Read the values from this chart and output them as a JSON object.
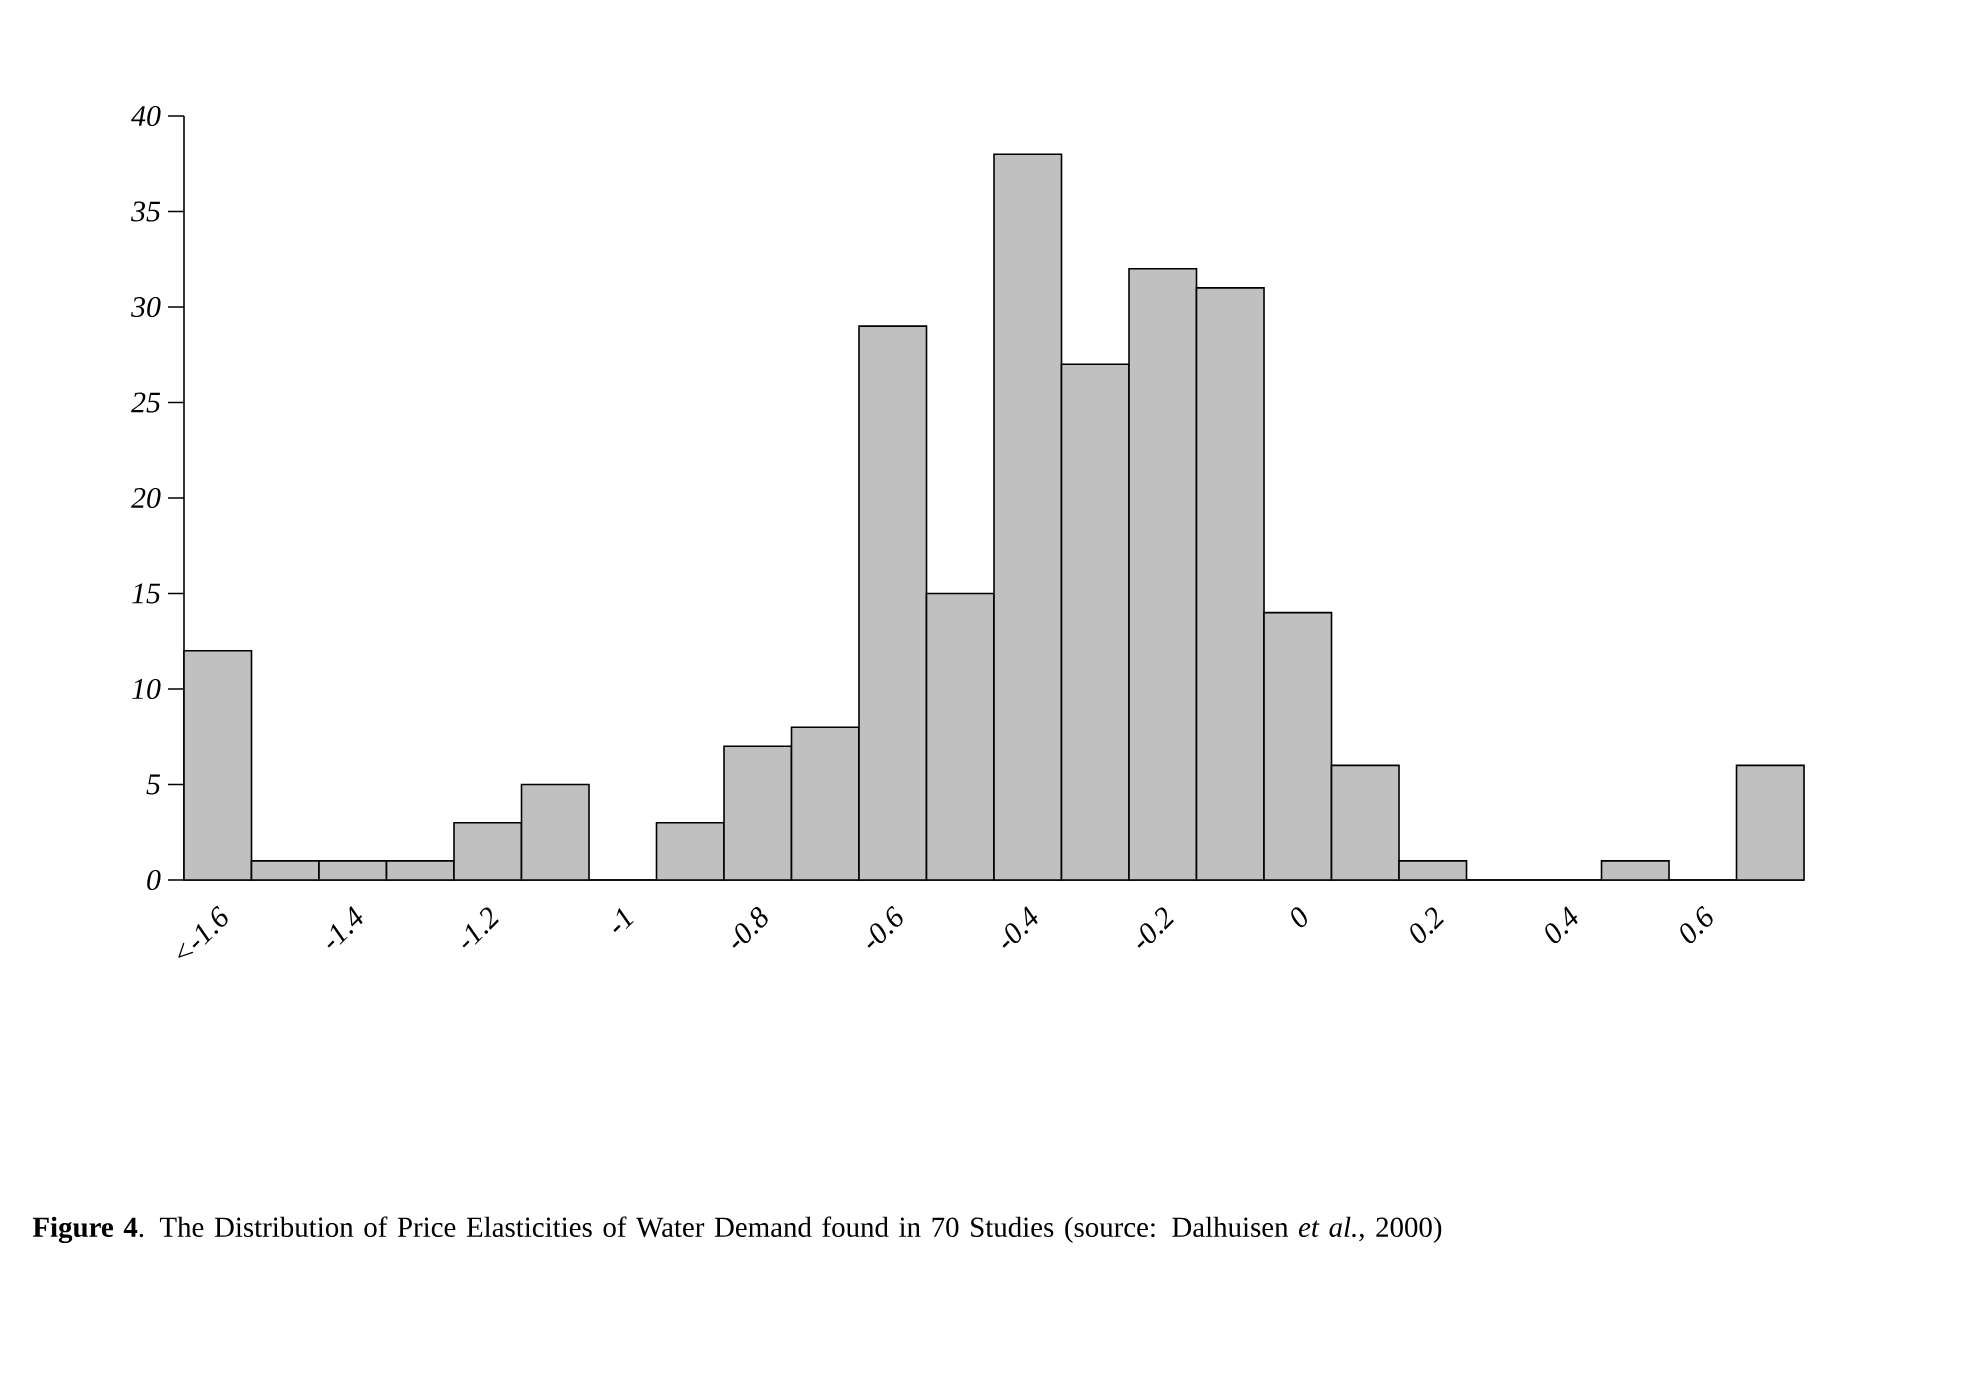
{
  "chart_data": {
    "type": "bar",
    "categories": [
      "<-1.6",
      null,
      "-1.4",
      null,
      "-1.2",
      null,
      "-1",
      null,
      "-0.8",
      null,
      "-0.6",
      null,
      "-0.4",
      null,
      "-0.2",
      null,
      "0",
      null,
      "0.2",
      null,
      "0.4",
      null,
      "0.6",
      null
    ],
    "values": [
      12,
      1,
      1,
      1,
      3,
      5,
      0,
      3,
      7,
      8,
      29,
      15,
      38,
      27,
      32,
      31,
      14,
      6,
      1,
      0,
      0,
      1,
      0,
      6
    ],
    "color": "#c0c0c0",
    "ylim": [
      0,
      40
    ],
    "yticks": [
      0,
      5,
      10,
      15,
      20,
      25,
      30,
      35,
      40
    ],
    "annotations": [
      "**Figure 4**. The Distribution of Price Elasticities of Water Demand found in 70 Studies (source: Dalhuisen *et al.*, 2000)"
    ]
  }
}
